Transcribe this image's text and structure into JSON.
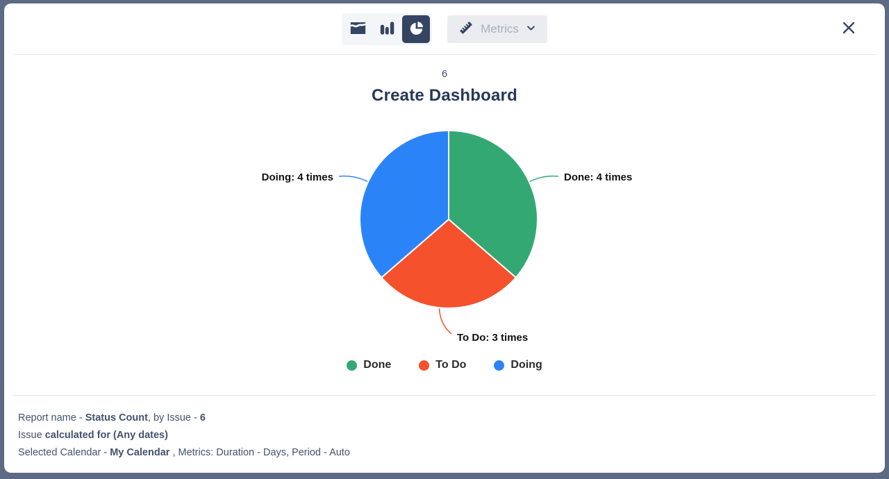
{
  "toolbar": {
    "chart_types": [
      {
        "id": "area",
        "icon": "area-chart-icon",
        "selected": false
      },
      {
        "id": "bar",
        "icon": "bar-chart-icon",
        "selected": false
      },
      {
        "id": "pie",
        "icon": "pie-chart-icon",
        "selected": true
      }
    ],
    "metrics_label": "Metrics"
  },
  "report": {
    "issue_count": "6",
    "title": "Create Dashboard"
  },
  "chart_data": {
    "type": "pie",
    "title": "Create Dashboard",
    "total": 11,
    "start_angle_deg": 0,
    "direction": "clockwise",
    "legend_position": "bottom",
    "series": [
      {
        "label": "Done",
        "value": 4,
        "color": "#34A873",
        "callout": "Done: 4 times"
      },
      {
        "label": "To Do",
        "value": 3,
        "color": "#F4512C",
        "callout": "To Do: 3 times"
      },
      {
        "label": "Doing",
        "value": 4,
        "color": "#2B84F7",
        "callout": "Doing: 4 times"
      }
    ]
  },
  "footer": {
    "line1": {
      "t1": "Report name - ",
      "b1": "Status Count",
      "t2": ", by Issue - ",
      "b2": "6"
    },
    "line2": {
      "t1": "Issue ",
      "b1": "calculated for (Any dates)"
    },
    "line3": {
      "t1": "Selected Calendar - ",
      "b1": "My Calendar",
      "t2": " , Metrics: Duration - Days, Period - Auto"
    }
  },
  "colors": {
    "frame": "#5d6a83",
    "accent_navy": "#344563",
    "title": "#253858",
    "divider": "#e3e5e9",
    "footer_text": "#42526e"
  }
}
